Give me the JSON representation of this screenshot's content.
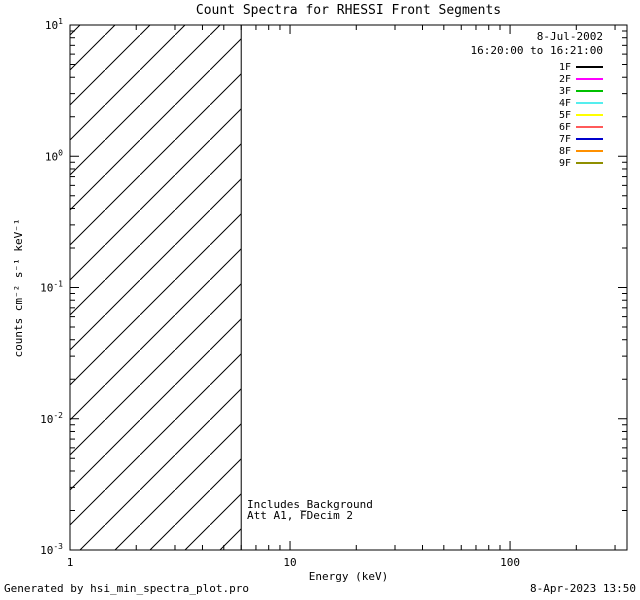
{
  "footer": {
    "generated_by": "Generated by hsi_min_spectra_plot.pro",
    "timestamp": "8-Apr-2023 13:50"
  },
  "chart_data": {
    "type": "line",
    "title": "Count Spectra for RHESSI Front Segments",
    "xlabel": "Energy (keV)",
    "ylabel": "counts cm⁻² s⁻¹ keV⁻¹",
    "xscale": "log",
    "yscale": "log",
    "xlim": [
      1,
      340
    ],
    "ylim": [
      0.001,
      10
    ],
    "grid": false,
    "x_ticks": [
      {
        "value": 1,
        "label": "1"
      },
      {
        "value": 10,
        "label": "10"
      },
      {
        "value": 100,
        "label": "100"
      }
    ],
    "y_ticks": [
      {
        "value": 10,
        "base": "10",
        "exp": "1"
      },
      {
        "value": 1,
        "base": "10",
        "exp": "0"
      },
      {
        "value": 0.1,
        "base": "10",
        "exp": "-1"
      },
      {
        "value": 0.01,
        "base": "10",
        "exp": "-2"
      },
      {
        "value": 0.001,
        "base": "10",
        "exp": "-3"
      }
    ],
    "legend": {
      "position": "top-right",
      "date": "8-Jul-2002",
      "time_range": "16:20:00 to 16:21:00",
      "entries": [
        {
          "label": "1F",
          "color": "#000000"
        },
        {
          "label": "2F",
          "color": "#ff00ff"
        },
        {
          "label": "3F",
          "color": "#00c000"
        },
        {
          "label": "4F",
          "color": "#55eeee"
        },
        {
          "label": "5F",
          "color": "#ffff00"
        },
        {
          "label": "6F",
          "color": "#ff5a5a"
        },
        {
          "label": "7F",
          "color": "#0000cc"
        },
        {
          "label": "8F",
          "color": "#ff9000"
        },
        {
          "label": "9F",
          "color": "#8f8f00"
        }
      ]
    },
    "annotations": {
      "line1": "Includes_Background",
      "line2": "Att A1, FDecim 2"
    },
    "background_region": {
      "x_start": 1,
      "x_end": 6,
      "style": "diagonal-hatch"
    },
    "vertical_line_x": 6,
    "series": []
  }
}
